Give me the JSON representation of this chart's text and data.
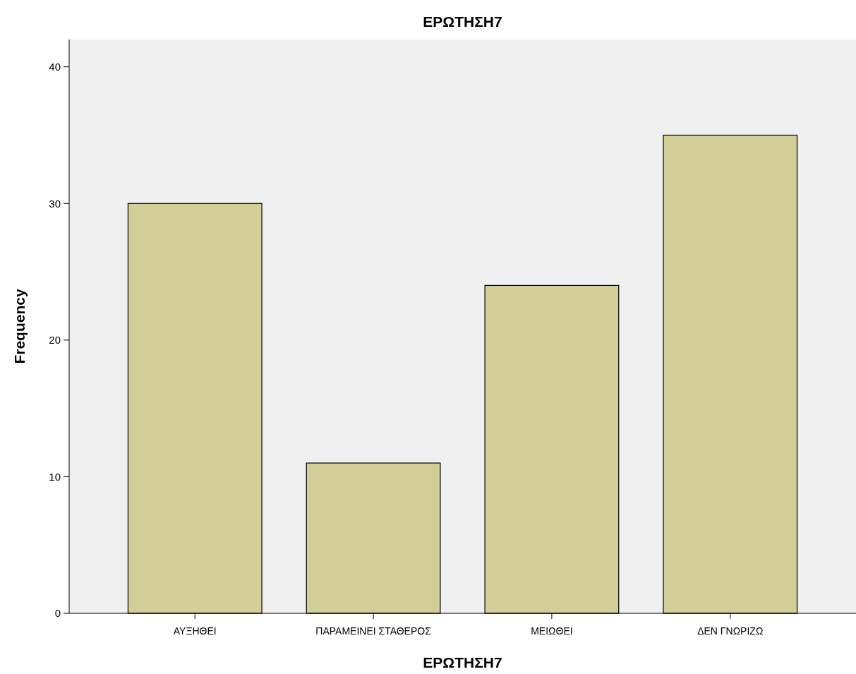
{
  "chart_data": {
    "type": "bar",
    "title": "ΕΡΩΤΗΣΗ7",
    "xlabel": "ΕΡΩΤΗΣΗ7",
    "ylabel": "Frequency",
    "categories": [
      "ΑΥΞΗΘΕΙ",
      "ΠΑΡΑΜΕΙΝΕΙ ΣΤΑΘΕΡΟΣ",
      "ΜΕΙΩΘΕΙ",
      "ΔΕΝ ΓΝΩΡΙΖΩ"
    ],
    "values": [
      30,
      11,
      24,
      35
    ],
    "color": "#d3ce97",
    "ylim": [
      0,
      42
    ],
    "yticks": [
      0,
      10,
      20,
      30,
      40
    ],
    "grid": false
  }
}
